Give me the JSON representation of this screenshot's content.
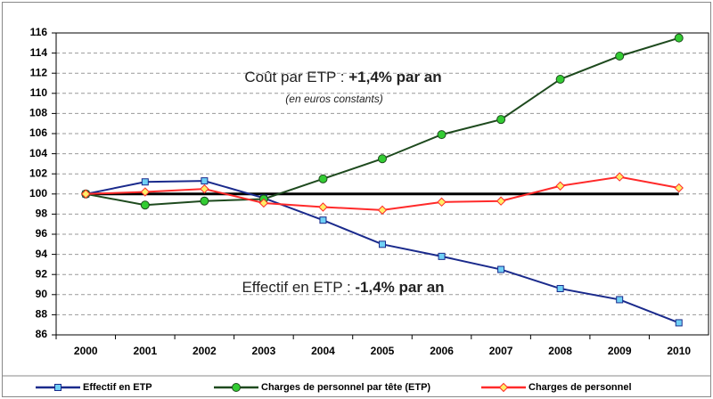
{
  "chart_data": {
    "type": "line",
    "categories": [
      "2000",
      "2001",
      "2002",
      "2003",
      "2004",
      "2005",
      "2006",
      "2007",
      "2008",
      "2009",
      "2010"
    ],
    "series": [
      {
        "name": "Effectif en ETP",
        "color": "#1a2a8c",
        "marker": "square",
        "marker_color": "#6fd0f5",
        "values": [
          100,
          101.2,
          101.3,
          99.6,
          97.4,
          95.0,
          93.8,
          92.5,
          90.6,
          89.5,
          87.2
        ]
      },
      {
        "name": "Charges de personnel par tête (ETP)",
        "color": "#1e4a1e",
        "marker": "circle",
        "marker_color": "#33cc33",
        "values": [
          100,
          98.9,
          99.3,
          99.5,
          101.5,
          103.5,
          105.9,
          107.4,
          111.4,
          113.7,
          115.5
        ]
      },
      {
        "name": "Charges de personnel",
        "color": "#ff2a2a",
        "marker": "diamond",
        "marker_color": "#ffee66",
        "values": [
          100,
          100.2,
          100.5,
          99.1,
          98.7,
          98.4,
          99.2,
          99.3,
          100.8,
          101.7,
          100.6
        ]
      }
    ],
    "reference_line": 100,
    "annotations": [
      {
        "text": "Coût par ETP : ",
        "bold": "+1,4% par an",
        "note": "(en euros constants)"
      },
      {
        "text": "Effectif en ETP : ",
        "bold": "-1,4% par an"
      }
    ],
    "ylim": [
      86,
      116
    ],
    "yticks": [
      86,
      88,
      90,
      92,
      94,
      96,
      98,
      100,
      102,
      104,
      106,
      108,
      110,
      112,
      114,
      116
    ],
    "grid": true,
    "legend": "bottom"
  }
}
